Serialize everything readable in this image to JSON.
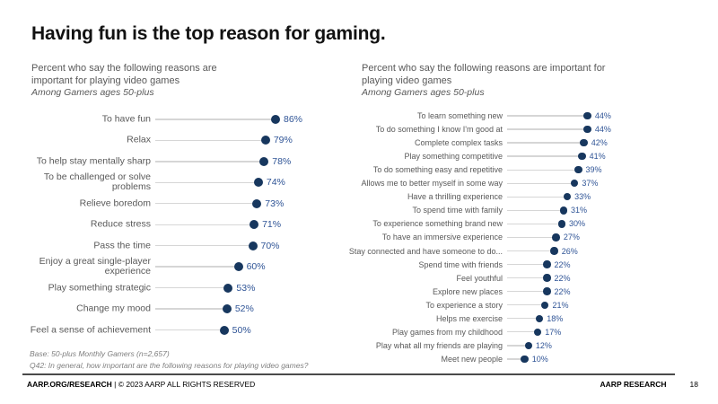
{
  "slide": {
    "title": "Having fun is the top reason for gaming.",
    "footnotes": [
      "Base: 50-plus Monthly Gamers (n=2,657)",
      "Q42: In general, how important are the following reasons for playing video games?"
    ],
    "footer": {
      "left_bold": "AARP.ORG/RESEARCH",
      "left_rest": " | © 2023 AARP ALL RIGHTS RESERVED",
      "right_brand": "AARP RESEARCH",
      "page_number": "18"
    },
    "colors": {
      "dot": "#17375E",
      "value_text": "#2F5496",
      "category_text": "#595959",
      "leader_line": "#D6D6D6",
      "title_text": "#121212",
      "footnote_text": "#7F7F7F"
    }
  },
  "chart_data": [
    {
      "type": "scatter",
      "variant": "horizontal dot plot (lollipop with leader lines)",
      "title": "Percent who say the following reasons are important for playing video games",
      "title_lines": [
        "Percent who say the following reasons are",
        "important for playing video games"
      ],
      "subtitle": "Among Gamers ages 50-plus",
      "unit": "%",
      "xlim": [
        0,
        100
      ],
      "grid": false,
      "legend": false,
      "categories": [
        "To have fun",
        "Relax",
        "To help stay mentally sharp",
        "To be challenged or solve problems",
        "Relieve boredom",
        "Reduce stress",
        "Pass the time",
        "Enjoy a great single-player experience",
        "Play something strategic",
        "Change my mood",
        "Feel a sense of achievement"
      ],
      "values": [
        86,
        79,
        78,
        74,
        73,
        71,
        70,
        60,
        53,
        52,
        50
      ]
    },
    {
      "type": "scatter",
      "variant": "horizontal dot plot (lollipop with leader lines)",
      "title": "Percent who say the following reasons are important for playing video games",
      "title_lines": [
        "Percent who say the following reasons are important for",
        "playing video games"
      ],
      "subtitle": "Among Gamers ages 50-plus",
      "unit": "%",
      "xlim": [
        0,
        100
      ],
      "grid": false,
      "legend": false,
      "categories": [
        "To learn something new",
        "To do something I know I'm good at",
        "Complete complex tasks",
        "Play something competitive",
        "To do something easy and repetitive",
        "Allows me to better myself in some way",
        "Have a thrilling experience",
        "To spend time with family",
        "To experience something brand new",
        "To have an immersive experience",
        "Stay connected and have someone to do...",
        "Spend time with friends",
        "Feel youthful",
        "Explore new places",
        "To experience a story",
        "Helps me exercise",
        "Play games from my childhood",
        "Play what all my friends are playing",
        "Meet new people"
      ],
      "values": [
        44,
        44,
        42,
        41,
        39,
        37,
        33,
        31,
        30,
        27,
        26,
        22,
        22,
        22,
        21,
        18,
        17,
        12,
        10
      ]
    }
  ]
}
